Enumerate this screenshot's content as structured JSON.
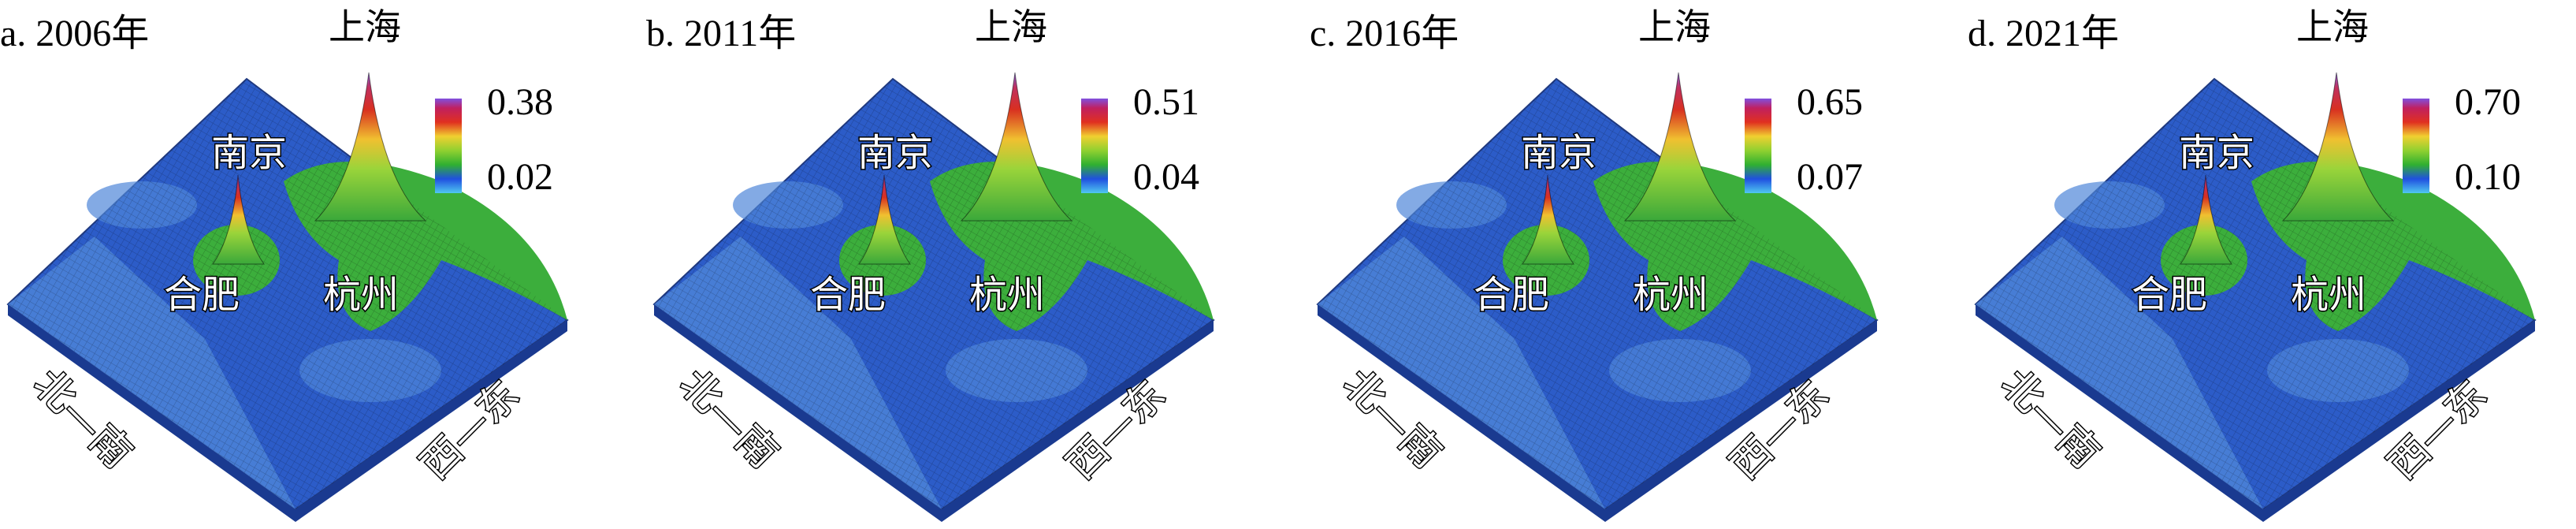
{
  "panels": [
    {
      "title": "a. 2006年",
      "peak": "上海",
      "colorbar_max": "0.38",
      "colorbar_min": "0.02",
      "cities": [
        "南京",
        "合肥",
        "杭州"
      ],
      "axis_ns": "北—南",
      "axis_ew": "西—东"
    },
    {
      "title": "b. 2011年",
      "peak": "上海",
      "colorbar_max": "0.51",
      "colorbar_min": "0.04",
      "cities": [
        "南京",
        "合肥",
        "杭州"
      ],
      "axis_ns": "北—南",
      "axis_ew": "西—东"
    },
    {
      "title": "c. 2016年",
      "peak": "上海",
      "colorbar_max": "0.65",
      "colorbar_min": "0.07",
      "cities": [
        "南京",
        "合肥",
        "杭州"
      ],
      "axis_ns": "北—南",
      "axis_ew": "西—东"
    },
    {
      "title": "d. 2021年",
      "peak": "上海",
      "colorbar_max": "0.70",
      "colorbar_min": "0.10",
      "cities": [
        "南京",
        "合肥",
        "杭州"
      ],
      "axis_ns": "北—南",
      "axis_ew": "西—东"
    }
  ]
}
